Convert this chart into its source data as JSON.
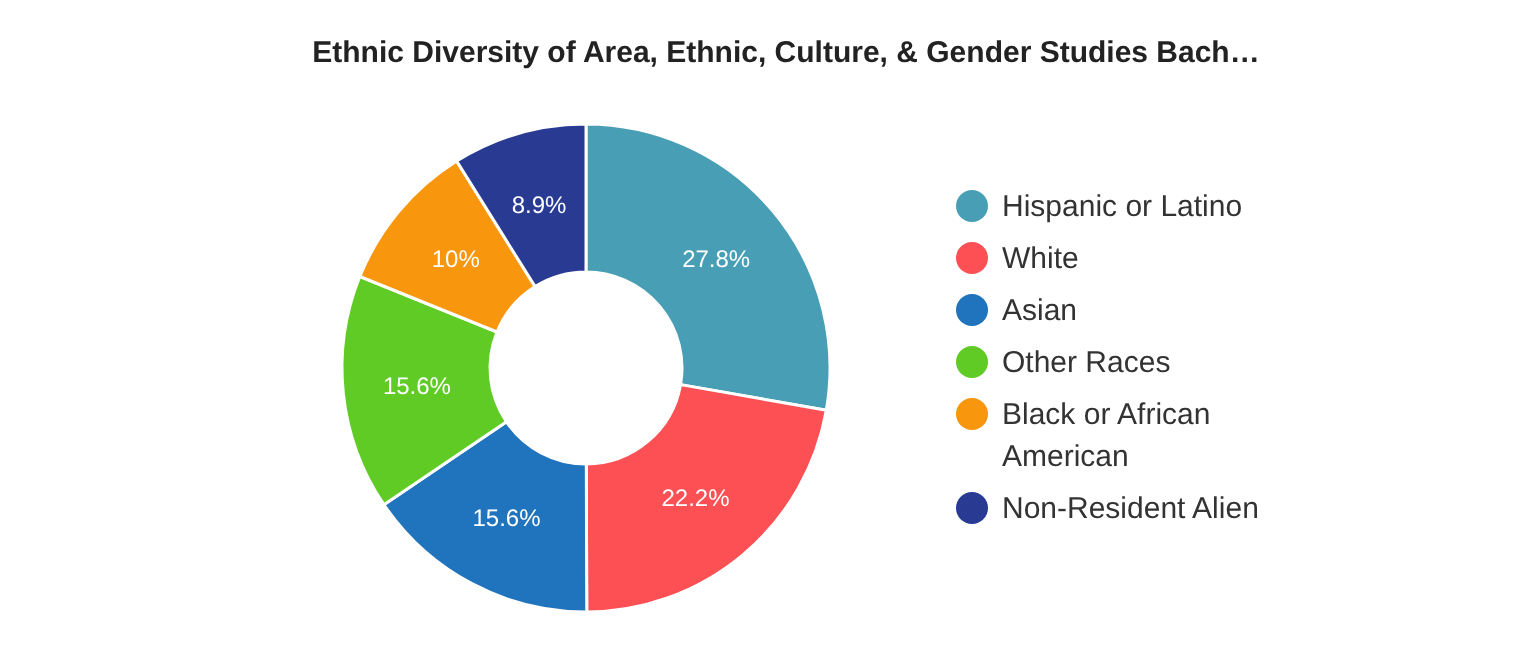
{
  "chart_data": {
    "type": "donut",
    "title": "Ethnic Diversity of Area, Ethnic, Culture, & Gender Studies Bach…",
    "categories": [
      "Hispanic or Latino",
      "White",
      "Asian",
      "Other Races",
      "Black or African American",
      "Non-Resident Alien"
    ],
    "values": [
      27.8,
      22.2,
      15.6,
      15.6,
      10,
      8.9
    ],
    "colors": [
      "#489fb5",
      "#fc5055",
      "#2073bd",
      "#5fcb24",
      "#f8960e",
      "#293a93"
    ],
    "value_labels": [
      "27.8%",
      "22.2%",
      "15.6%",
      "15.6%",
      "10%",
      "8.9%"
    ],
    "legend": "right"
  }
}
